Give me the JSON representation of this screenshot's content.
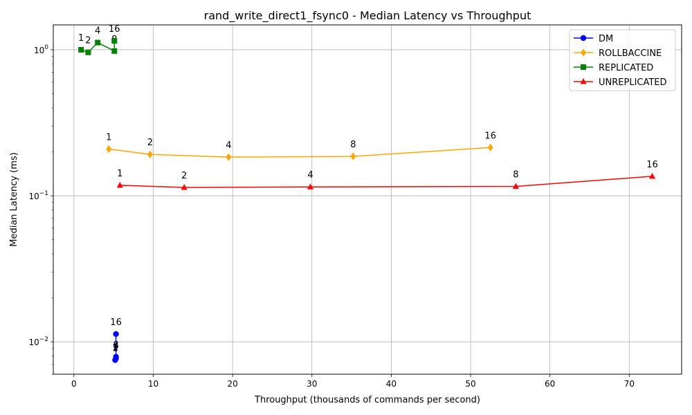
{
  "chart_data": {
    "type": "line",
    "title": "rand_write_direct1_fsync0 - Median Latency vs Throughput",
    "xlabel": "Throughput (thousands of commands per second)",
    "ylabel": "Median Latency (ms)",
    "xlim": [
      -2.6,
      76.6
    ],
    "ylim": [
      0.006,
      1.48
    ],
    "yscale": "log",
    "grid": true,
    "legend_position": "top-right",
    "x_ticks": [
      {
        "value": 0,
        "label": "0"
      },
      {
        "value": 10,
        "label": "10"
      },
      {
        "value": 20,
        "label": "20"
      },
      {
        "value": 30,
        "label": "30"
      },
      {
        "value": 40,
        "label": "40"
      },
      {
        "value": 50,
        "label": "50"
      },
      {
        "value": 60,
        "label": "60"
      },
      {
        "value": 70,
        "label": "70"
      }
    ],
    "y_ticks": [
      {
        "value": 0.01,
        "base": "10",
        "exp": "−2"
      },
      {
        "value": 0.1,
        "base": "10",
        "exp": "−1"
      },
      {
        "value": 1,
        "base": "10",
        "exp": "0"
      }
    ],
    "series": [
      {
        "name": "DM",
        "color": "#0000ff",
        "marker": "circle",
        "points": [
          {
            "x": 5.2,
            "y": 0.0075,
            "label": "1"
          },
          {
            "x": 5.25,
            "y": 0.0076,
            "label": "2"
          },
          {
            "x": 5.3,
            "y": 0.0077,
            "label": "4"
          },
          {
            "x": 5.3,
            "y": 0.0079,
            "label": "8"
          },
          {
            "x": 5.3,
            "y": 0.0113,
            "label": "16"
          }
        ]
      },
      {
        "name": "ROLLBACCINE",
        "color": "#ffa500",
        "marker": "diamond",
        "points": [
          {
            "x": 4.4,
            "y": 0.209,
            "label": "1"
          },
          {
            "x": 9.6,
            "y": 0.192,
            "label": "2"
          },
          {
            "x": 19.5,
            "y": 0.184,
            "label": "4"
          },
          {
            "x": 35.2,
            "y": 0.186,
            "label": "8"
          },
          {
            "x": 52.5,
            "y": 0.214,
            "label": "16"
          }
        ]
      },
      {
        "name": "REPLICATED",
        "color": "#008000",
        "marker": "square",
        "points": [
          {
            "x": 0.9,
            "y": 1.0,
            "label": "1"
          },
          {
            "x": 1.8,
            "y": 0.96,
            "label": "2"
          },
          {
            "x": 3.0,
            "y": 1.12,
            "label": "4"
          },
          {
            "x": 5.1,
            "y": 0.98,
            "label": "8"
          },
          {
            "x": 5.1,
            "y": 1.15,
            "label": "16"
          }
        ]
      },
      {
        "name": "UNREPLICATED",
        "color": "#ff0000",
        "marker": "triangle",
        "points": [
          {
            "x": 5.8,
            "y": 0.118,
            "label": "1"
          },
          {
            "x": 13.9,
            "y": 0.114,
            "label": "2"
          },
          {
            "x": 29.8,
            "y": 0.115,
            "label": "4"
          },
          {
            "x": 55.7,
            "y": 0.116,
            "label": "8"
          },
          {
            "x": 72.9,
            "y": 0.136,
            "label": "16"
          }
        ]
      }
    ]
  }
}
